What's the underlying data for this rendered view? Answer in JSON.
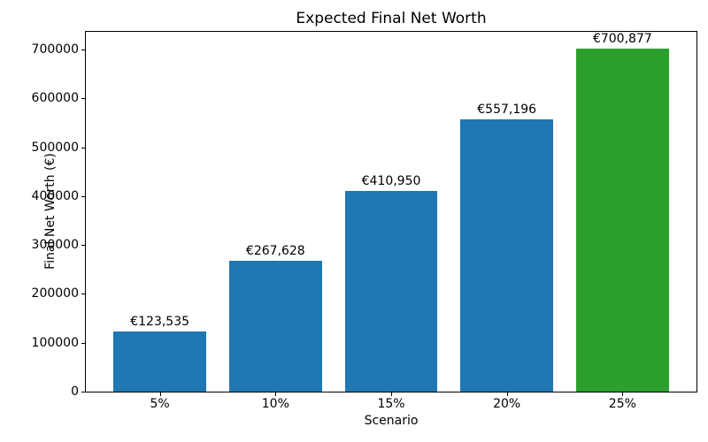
{
  "chart_data": {
    "type": "bar",
    "title": "Expected Final Net Worth",
    "xlabel": "Scenario",
    "ylabel": "Final Net Worth (€)",
    "categories": [
      "5%",
      "10%",
      "15%",
      "20%",
      "25%"
    ],
    "values": [
      123535,
      267628,
      410950,
      557196,
      700877
    ],
    "bar_labels": [
      "€123,535",
      "€267,628",
      "€410,950",
      "€557,196",
      "€700,877"
    ],
    "bar_colors": [
      "#1f77b4",
      "#1f77b4",
      "#1f77b4",
      "#1f77b4",
      "#2ca02c"
    ],
    "yticks": [
      0,
      100000,
      200000,
      300000,
      400000,
      500000,
      600000,
      700000
    ],
    "ytick_labels": [
      "0",
      "100000",
      "200000",
      "300000",
      "400000",
      "500000",
      "600000",
      "700000"
    ],
    "ylim": [
      0,
      736000
    ],
    "grid": false,
    "legend": "none",
    "background_color": "#ffffff",
    "spine_color": "#000000",
    "highlight_color": "#2ca02c",
    "default_bar_color": "#1f77b4"
  }
}
